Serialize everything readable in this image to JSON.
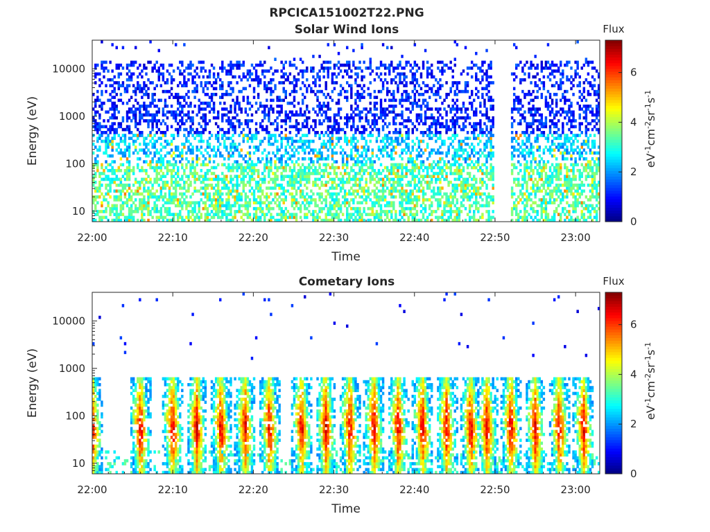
{
  "figure": {
    "title": "RPCICA151002T22.PNG"
  },
  "chart_data": [
    {
      "type": "heatmap",
      "title": "Solar Wind Ions",
      "xlabel": "Time",
      "ylabel": "Energy (eV)",
      "xticks": [
        "22:00",
        "22:10",
        "22:20",
        "22:30",
        "22:40",
        "22:50",
        "23:00"
      ],
      "yticks": [
        10,
        100,
        1000,
        10000
      ],
      "xlim": [
        "22:00",
        "23:03"
      ],
      "ylim": [
        6,
        40000
      ],
      "yscale": "log",
      "gap": [
        "22:50",
        "22:52"
      ],
      "colorbar": {
        "label": "Flux",
        "unit": "eV-1cm-2sr-1s-1",
        "ticks": [
          0,
          2,
          4,
          6
        ],
        "range": [
          0,
          7.3
        ],
        "colormap": "jet"
      }
    },
    {
      "type": "heatmap",
      "title": "Cometary Ions",
      "xlabel": "Time",
      "ylabel": "Energy (eV)",
      "xticks": [
        "22:00",
        "22:10",
        "22:20",
        "22:30",
        "22:40",
        "22:50",
        "23:00"
      ],
      "yticks": [
        10,
        100,
        1000,
        10000
      ],
      "xlim": [
        "22:00",
        "23:03"
      ],
      "ylim": [
        6,
        40000
      ],
      "yscale": "log",
      "bursts": [
        "22:00",
        "22:06",
        "22:10",
        "22:13",
        "22:16",
        "22:19",
        "22:22",
        "22:26",
        "22:29",
        "22:32",
        "22:35",
        "22:38",
        "22:41",
        "22:44",
        "22:47",
        "22:49",
        "22:52",
        "22:55",
        "22:58",
        "23:01"
      ],
      "colorbar": {
        "label": "Flux",
        "unit": "eV-1cm-2sr-1s-1",
        "ticks": [
          0,
          2,
          4,
          6
        ],
        "range": [
          0,
          7.3
        ],
        "colormap": "jet"
      }
    }
  ]
}
